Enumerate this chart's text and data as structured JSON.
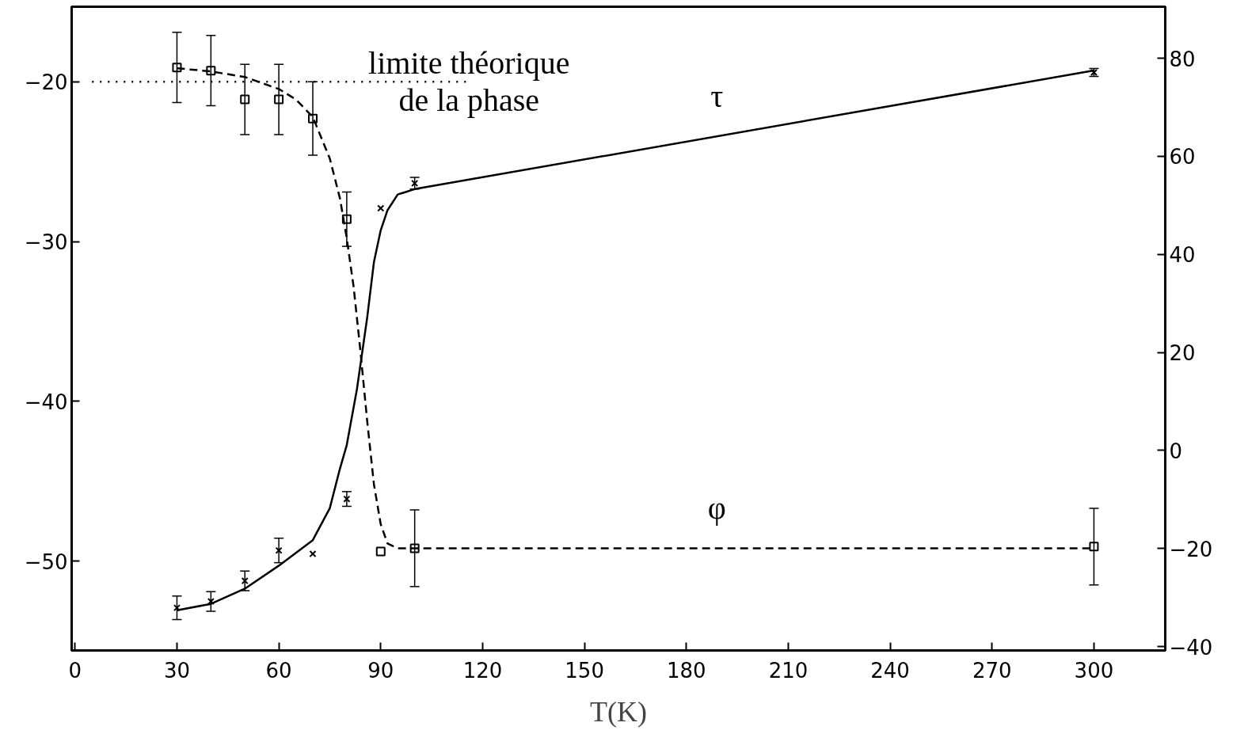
{
  "chart_data": {
    "type": "scatter",
    "xlabel": "T(K)",
    "xlim": [
      -1,
      321
    ],
    "xticks": [
      0,
      30,
      60,
      90,
      120,
      150,
      180,
      210,
      240,
      270,
      300
    ],
    "ylim": [
      -55.6,
      -15.3
    ],
    "yticks": [
      -20,
      -30,
      -40,
      -50
    ],
    "y2lim": [
      -40.8,
      90.5
    ],
    "y2ticks": [
      80,
      60,
      40,
      20,
      0,
      -20,
      -40
    ],
    "grid": false,
    "series": [
      {
        "marker": "square",
        "color": "#000000",
        "x": [
          30,
          40,
          50,
          60,
          70,
          80,
          90,
          100,
          300
        ],
        "values": [
          -19.1,
          -19.3,
          -21.1,
          -21.1,
          -22.3,
          -28.6,
          -49.4,
          -49.2,
          -49.1
        ],
        "errors": [
          2.2,
          2.2,
          2.2,
          2.2,
          2.3,
          1.7,
          null,
          2.4,
          2.4
        ]
      },
      {
        "marker": "cross",
        "color": "#000000",
        "axis": "y2",
        "x": [
          30,
          40,
          50,
          60,
          70,
          80,
          90,
          100,
          300
        ],
        "values": [
          -32.1,
          -30.8,
          -26.6,
          -20.4,
          -21.1,
          -9.9,
          49.4,
          54.5,
          77.1
        ],
        "errors": [
          2.4,
          2.0,
          2.0,
          2.5,
          null,
          1.5,
          null,
          1.2,
          0.8
        ]
      },
      {
        "type": "line",
        "name": "φ",
        "line_style": "dashed",
        "marker": "none",
        "color": "#000000",
        "x": [
          30,
          40,
          50,
          60,
          65,
          70,
          75,
          78,
          80,
          82,
          84,
          86,
          88,
          90,
          92,
          95,
          300
        ],
        "values": [
          -19.15,
          -19.35,
          -19.7,
          -20.45,
          -21.1,
          -22.2,
          -24.8,
          -27.3,
          -29.8,
          -32.8,
          -36.8,
          -41.2,
          -45.2,
          -47.7,
          -48.9,
          -49.2,
          -49.2
        ]
      },
      {
        "type": "line",
        "name": "τ",
        "line_style": "solid",
        "marker": "none",
        "color": "#000000",
        "axis": "y2",
        "x": [
          30,
          40,
          50,
          60,
          70,
          75,
          78,
          80,
          83,
          86,
          88,
          90,
          92,
          95,
          100,
          300
        ],
        "values": [
          -32.6,
          -31.3,
          -28.2,
          -23.5,
          -18.3,
          -11.8,
          -3.7,
          1.1,
          12.5,
          27,
          38.4,
          44.9,
          49,
          52.2,
          53.3,
          77.5
        ]
      },
      {
        "type": "line",
        "name": "limite théorique\nde la phase",
        "line_style": "dotted",
        "marker": "none",
        "color": "#000000",
        "x": [
          5,
          116
        ],
        "values": [
          -20,
          -20
        ]
      }
    ]
  }
}
